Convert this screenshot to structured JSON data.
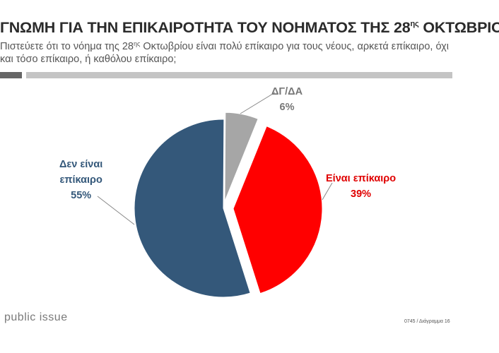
{
  "header": {
    "title_pre": "ΓΝΩΜΗ ΓΙΑ ΤΗΝ ΕΠΙΚΑΙΡΟΤΗΤΑ ΤΟΥ ΝΟΗΜΑΤΟΣ ΤΗΣ 28",
    "title_sup": "ης",
    "title_post": " ΟΚΤΩΒΡΙΟΥ",
    "subtitle_pre": "Πιστεύετε ότι το νόημα της 28",
    "subtitle_sup": "ης",
    "subtitle_post": " Οκτωβρίου είναι πολύ επίκαιρο για τους νέους, αρκετά επίκαιρο, όχι και τόσο επίκαιρο, ή καθόλου επίκαιρο;"
  },
  "chart_data": {
    "type": "pie",
    "slices": [
      {
        "label": "Είναι επίκαιρο",
        "value": 39,
        "display": "39%",
        "color": "#ff0000"
      },
      {
        "label": "Δεν είναι επίκαιρο",
        "value": 55,
        "display": "55%",
        "color": "#34587a"
      },
      {
        "label": "ΔΓ/ΔΑ",
        "value": 6,
        "display": "6%",
        "color": "#a6a6a6"
      }
    ],
    "exploded": [
      "Είναι επίκαιρο",
      "ΔΓ/ΔΑ"
    ]
  },
  "labels": {
    "not_topical_line1": "Δεν είναι",
    "not_topical_line2": "επίκαιρο",
    "not_topical_pct": "55%",
    "topical": "Είναι επίκαιρο",
    "topical_pct": "39%",
    "dk_na": "ΔΓ/ΔΑ",
    "dk_na_pct": "6%"
  },
  "footer": {
    "logo": "public issue",
    "footnote": "0745 / Διάγραμμα 16"
  }
}
